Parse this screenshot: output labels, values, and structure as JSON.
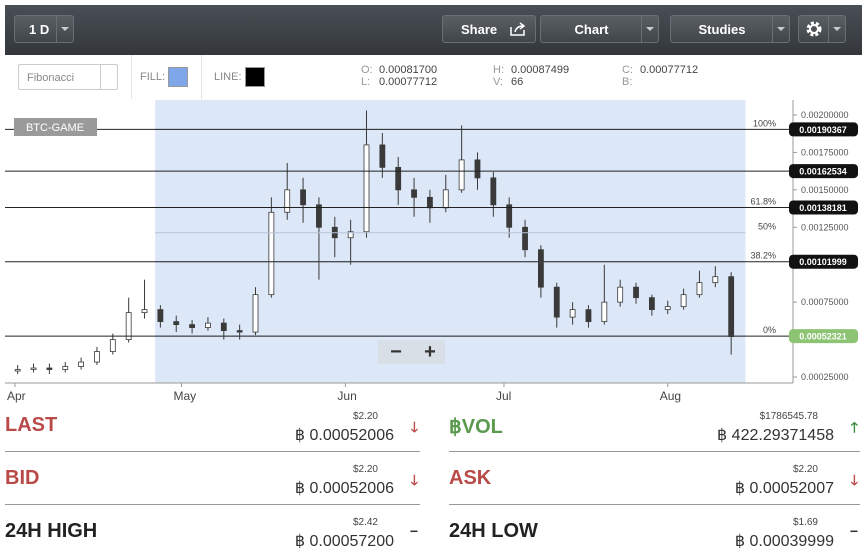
{
  "toolbar": {
    "interval": "1 D",
    "share": "Share",
    "chart": "Chart",
    "studies": "Studies"
  },
  "drawing_bar": {
    "tool": "Fibonacci",
    "fill_label": "FILL:",
    "fill_color": "#7ea6e8",
    "line_label": "LINE:",
    "line_color": "#000000"
  },
  "ohlc": {
    "o_label": "O:",
    "o": "0.00081700",
    "l_label": "L:",
    "l": "0.00077712",
    "h_label": "H:",
    "h": "0.00087499",
    "v_label": "V:",
    "v": "66",
    "c_label": "C:",
    "c": "0.00077712",
    "b_label": "B:"
  },
  "chart_data": {
    "type": "candlestick",
    "market_label": "BTC-GAME",
    "open": [
      0.00029,
      0.0003,
      0.00031,
      0.0003,
      0.00032,
      0.00035,
      0.00042,
      0.0005,
      0.00068,
      0.0007,
      0.00062,
      0.0006,
      0.00058,
      0.00061,
      0.00056,
      0.00055,
      0.0008,
      0.00135,
      0.0015,
      0.0014,
      0.00125,
      0.00118,
      0.00122,
      0.0018,
      0.00165,
      0.0015,
      0.00145,
      0.00138,
      0.0015,
      0.0017,
      0.00158,
      0.0014,
      0.00125,
      0.0011,
      0.00085,
      0.00065,
      0.0007,
      0.00062,
      0.00075,
      0.00085,
      0.00078,
      0.0007,
      0.00072,
      0.0008,
      0.00088,
      0.00092
    ],
    "high": [
      0.00033,
      0.00034,
      0.00034,
      0.00035,
      0.00038,
      0.00045,
      0.00054,
      0.00078,
      0.0009,
      0.00073,
      0.00066,
      0.00063,
      0.00065,
      0.00064,
      0.0006,
      0.00085,
      0.00145,
      0.00168,
      0.00158,
      0.00145,
      0.00132,
      0.0013,
      0.00203,
      0.00188,
      0.00172,
      0.00158,
      0.0015,
      0.0016,
      0.00193,
      0.00175,
      0.00162,
      0.00145,
      0.0013,
      0.00113,
      0.00088,
      0.00075,
      0.00073,
      0.001,
      0.0009,
      0.00088,
      0.0008,
      0.00076,
      0.00084,
      0.00096,
      0.00099,
      0.00095
    ],
    "low": [
      0.00027,
      0.00028,
      0.00027,
      0.00028,
      0.0003,
      0.00033,
      0.0004,
      0.00048,
      0.00064,
      0.00058,
      0.00055,
      0.00054,
      0.00056,
      0.0005,
      0.0005,
      0.00053,
      0.00078,
      0.0013,
      0.00128,
      0.0009,
      0.00105,
      0.001,
      0.00118,
      0.00158,
      0.0014,
      0.00132,
      0.00128,
      0.00135,
      0.00148,
      0.0015,
      0.00132,
      0.00118,
      0.00105,
      0.00078,
      0.00058,
      0.0006,
      0.00058,
      0.0006,
      0.00072,
      0.00074,
      0.00066,
      0.00067,
      0.0007,
      0.00078,
      0.00085,
      0.0004
    ],
    "close": [
      0.0003,
      0.00031,
      0.0003,
      0.00032,
      0.00035,
      0.00042,
      0.0005,
      0.00068,
      0.0007,
      0.00062,
      0.0006,
      0.00058,
      0.00061,
      0.00056,
      0.00055,
      0.0008,
      0.00135,
      0.0015,
      0.0014,
      0.00125,
      0.00118,
      0.00122,
      0.0018,
      0.00165,
      0.0015,
      0.00145,
      0.00138,
      0.0015,
      0.0017,
      0.00158,
      0.0014,
      0.00125,
      0.0011,
      0.00085,
      0.00065,
      0.0007,
      0.00062,
      0.00075,
      0.00085,
      0.00078,
      0.0007,
      0.00072,
      0.0008,
      0.00088,
      0.00092,
      0.00052
    ],
    "up_color": "#ffffff",
    "down_color": "#3a3a3a",
    "wick_color": "#3a3a3a",
    "xlim": [
      -0.8,
      48.9
    ],
    "xticks": [
      {
        "value": -0.17,
        "label": "Apr"
      },
      {
        "value": 10.33,
        "label": "May"
      },
      {
        "value": 20.67,
        "label": "Jun"
      },
      {
        "value": 30.67,
        "label": "Jul"
      },
      {
        "value": 41,
        "label": "Aug"
      }
    ],
    "ylim": [
      0.00021,
      0.0021
    ],
    "yticks": [
      {
        "value": 0.00025,
        "label": "0.00025000"
      },
      {
        "value": 0.0005,
        "label": "0.00050000"
      },
      {
        "value": 0.00075,
        "label": "0.00075000"
      },
      {
        "value": 0.001,
        "label": "0.00100000"
      },
      {
        "value": 0.00125,
        "label": "0.00125000"
      },
      {
        "value": 0.0015,
        "label": "0.00150000"
      },
      {
        "value": 0.00175,
        "label": "0.00175000"
      },
      {
        "value": 0.002,
        "label": "0.00200000"
      }
    ],
    "fib_range": [
      8.67,
      45.9
    ],
    "fib_fill": "#dce7f7",
    "price_lines": [
      0.00190367,
      0.00162534,
      0.00138181,
      0.00101999,
      0.00052321
    ],
    "last_price_color": "#8cc474",
    "fib_levels": [
      {
        "label": "100%",
        "value": 0.00190367
      },
      {
        "label": "61.8%",
        "value": 0.00138181
      },
      {
        "label": "50%",
        "value": 0.00121344
      },
      {
        "label": "38.2%",
        "value": 0.00101999
      },
      {
        "label": "0%",
        "value": 0.00052321
      }
    ],
    "zoom_out": "−",
    "zoom_in": "+"
  },
  "stats": [
    {
      "label": "LAST",
      "usd": "$2.20",
      "value": "฿ 0.00052006",
      "arrow": "🡓",
      "color": "#b94a48",
      "arrow_color": "#b94a48"
    },
    {
      "label": "฿VOL",
      "usd": "$1786545.78",
      "value": "฿ 422.29371458",
      "arrow": "🡑",
      "color": "#5a9a4f",
      "arrow_color": "#3d8b3d"
    },
    {
      "label": "BID",
      "usd": "$2.20",
      "value": "฿ 0.00052006",
      "arrow": "🡓",
      "color": "#b94a48",
      "arrow_color": "#b94a48"
    },
    {
      "label": "ASK",
      "usd": "$2.20",
      "value": "฿ 0.00052007",
      "arrow": "🡓",
      "color": "#b94a48",
      "arrow_color": "#b94a48"
    },
    {
      "label": "24H HIGH",
      "usd": "$2.42",
      "value": "฿ 0.00057200",
      "arrow": "−",
      "color": "#222222",
      "arrow_color": "#333333"
    },
    {
      "label": "24H LOW",
      "usd": "$1.69",
      "value": "฿ 0.00039999",
      "arrow": "−",
      "color": "#222222",
      "arrow_color": "#333333"
    }
  ]
}
